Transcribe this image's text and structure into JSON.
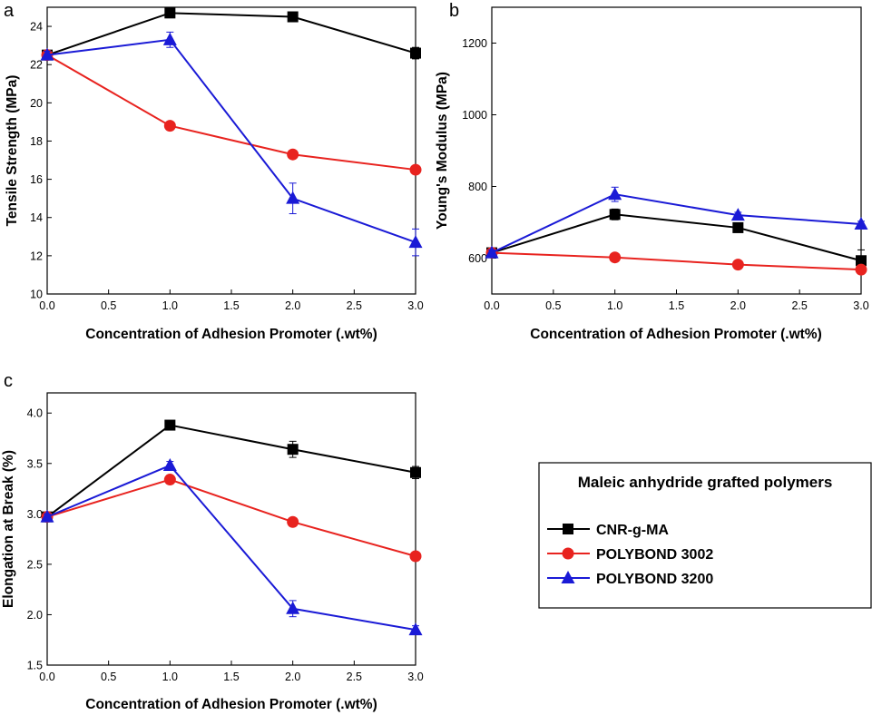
{
  "legend": {
    "title": "Maleic anhydride grafted polymers",
    "entries": [
      {
        "name": "CNR-g-MA",
        "color": "#000000",
        "marker": "square"
      },
      {
        "name": "POLYBOND 3002",
        "color": "#e8231f",
        "marker": "circle"
      },
      {
        "name": "POLYBOND 3200",
        "color": "#1a1ad6",
        "marker": "triangle"
      }
    ]
  },
  "chart_data": [
    {
      "panel": "a",
      "type": "line",
      "xlabel": "Concentration of Adhesion Promoter (.wt%)",
      "ylabel": "Tensile Strength (MPa)",
      "xlim": [
        0,
        3
      ],
      "ylim": [
        10,
        25
      ],
      "xticks": [
        "0.0",
        "0.5",
        "1.0",
        "1.5",
        "2.0",
        "2.5",
        "3.0"
      ],
      "yticks": [
        "10",
        "12",
        "14",
        "16",
        "18",
        "20",
        "22",
        "24"
      ],
      "x": [
        0,
        1,
        2,
        3
      ],
      "series": [
        {
          "name": "CNR-g-MA",
          "values": [
            22.5,
            24.7,
            24.5,
            22.6
          ],
          "errors": [
            0.2,
            0.2,
            0.2,
            0.3
          ]
        },
        {
          "name": "POLYBOND 3002",
          "values": [
            22.5,
            18.8,
            17.3,
            16.5
          ],
          "errors": [
            0.2,
            0.2,
            0.2,
            0.2
          ]
        },
        {
          "name": "POLYBOND 3200",
          "values": [
            22.5,
            23.3,
            15.0,
            12.7
          ],
          "errors": [
            0.2,
            0.4,
            0.8,
            0.7
          ]
        }
      ]
    },
    {
      "panel": "b",
      "type": "line",
      "xlabel": "Concentration of Adhesion Promoter (.wt%)",
      "ylabel": "Young's Modulus (MPa)",
      "xlim": [
        0,
        3
      ],
      "ylim": [
        500,
        1300
      ],
      "xticks": [
        "0.0",
        "0.5",
        "1.0",
        "1.5",
        "2.0",
        "2.5",
        "3.0"
      ],
      "yticks": [
        "600",
        "800",
        "1000",
        "1200"
      ],
      "x": [
        0,
        1,
        2,
        3
      ],
      "series": [
        {
          "name": "CNR-g-MA",
          "values": [
            615,
            722,
            685,
            593
          ],
          "errors": [
            8,
            15,
            10,
            30
          ]
        },
        {
          "name": "POLYBOND 3002",
          "values": [
            615,
            602,
            582,
            568
          ],
          "errors": [
            5,
            5,
            5,
            5
          ]
        },
        {
          "name": "POLYBOND 3200",
          "values": [
            615,
            778,
            720,
            695
          ],
          "errors": [
            8,
            20,
            8,
            8
          ]
        }
      ]
    },
    {
      "panel": "c",
      "type": "line",
      "xlabel": "Concentration of Adhesion Promoter (.wt%)",
      "ylabel": "Elongation at Break (%)",
      "xlim": [
        0,
        3
      ],
      "ylim": [
        1.5,
        4.2
      ],
      "xticks": [
        "0.0",
        "0.5",
        "1.0",
        "1.5",
        "2.0",
        "2.5",
        "3.0"
      ],
      "yticks": [
        "1.5",
        "2.0",
        "2.5",
        "3.0",
        "3.5",
        "4.0"
      ],
      "x": [
        0,
        1,
        2,
        3
      ],
      "series": [
        {
          "name": "CNR-g-MA",
          "values": [
            2.97,
            3.88,
            3.64,
            3.41
          ],
          "errors": [
            0.03,
            0.03,
            0.08,
            0.06
          ]
        },
        {
          "name": "POLYBOND 3002",
          "values": [
            2.97,
            3.34,
            2.92,
            2.58
          ],
          "errors": [
            0.03,
            0.03,
            0.03,
            0.04
          ]
        },
        {
          "name": "POLYBOND 3200",
          "values": [
            2.97,
            3.48,
            2.06,
            1.85
          ],
          "errors": [
            0.03,
            0.04,
            0.08,
            0.04
          ]
        }
      ]
    }
  ]
}
